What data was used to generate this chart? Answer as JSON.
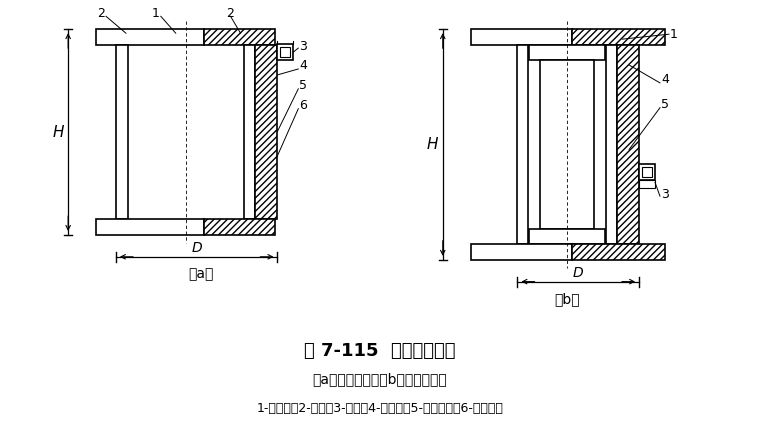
{
  "title": "图 7-115  锤击力传感器",
  "subtitle": "（a）用于帽上；（b）用于垫木上",
  "legend": "1-法兰盘；2-盖板；3-插座；4-电阻片；5-弹性元件；6-防水胶片",
  "bg_color": "#ffffff",
  "line_color": "#000000",
  "fig_label_a": "（a）",
  "fig_label_b": "（b）"
}
